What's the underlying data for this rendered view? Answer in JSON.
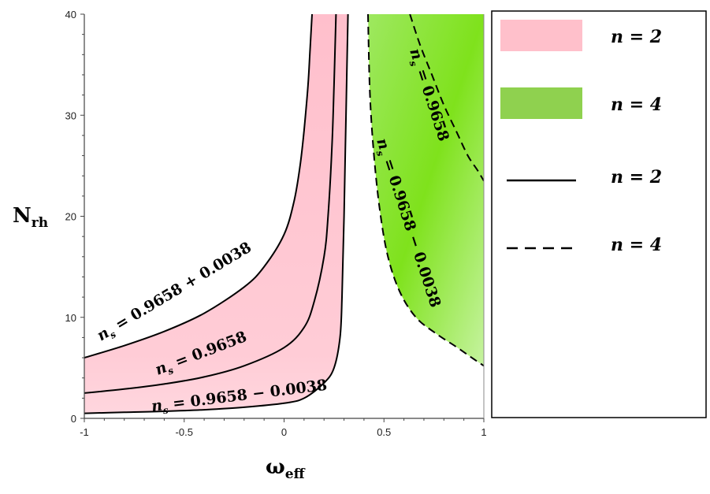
{
  "chart_data": {
    "type": "area",
    "title": "",
    "xlabel": "ω_eff",
    "ylabel": "N_rh",
    "xlim": [
      -1,
      1
    ],
    "ylim": [
      0,
      40
    ],
    "x_ticks": [
      "-1",
      "-0.5",
      "0",
      "0.5",
      "1"
    ],
    "y_ticks": [
      "0",
      "10",
      "20",
      "30",
      "40"
    ],
    "grid": false,
    "legend_position": "right",
    "legend": [
      {
        "label": "n = 2",
        "kind": "fill",
        "color": "#ffc0cb"
      },
      {
        "label": "n = 4",
        "kind": "fill",
        "color": "#8fd14f"
      },
      {
        "label": "n = 2",
        "kind": "solid-line",
        "color": "#000000"
      },
      {
        "label": "n = 4",
        "kind": "dashed-line",
        "color": "#000000"
      }
    ],
    "regions": [
      {
        "name": "n = 2",
        "color": "#ffc0cb",
        "between": [
          "n2_upper",
          "n2_lower"
        ]
      },
      {
        "name": "n = 4",
        "color": "#7fe01a",
        "between": [
          "n4_lower",
          "top-right"
        ]
      }
    ],
    "series": [
      {
        "id": "n2_upper",
        "label": "n_s = 0.9658 + 0.0038",
        "n": 2,
        "style": "solid",
        "points": [
          [
            -1.0,
            6.0
          ],
          [
            -0.8,
            7.2
          ],
          [
            -0.6,
            8.6
          ],
          [
            -0.4,
            10.4
          ],
          [
            -0.2,
            13.0
          ],
          [
            -0.1,
            15.0
          ],
          [
            0.0,
            18.2
          ],
          [
            0.05,
            21.5
          ],
          [
            0.08,
            25.0
          ],
          [
            0.1,
            28.5
          ],
          [
            0.12,
            33.0
          ],
          [
            0.13,
            36.5
          ],
          [
            0.14,
            40.0
          ]
        ]
      },
      {
        "id": "n2_central",
        "label": "n_s = 0.9658",
        "n": 2,
        "style": "solid",
        "points": [
          [
            -1.0,
            2.5
          ],
          [
            -0.8,
            2.9
          ],
          [
            -0.6,
            3.4
          ],
          [
            -0.4,
            4.1
          ],
          [
            -0.2,
            5.2
          ],
          [
            0.0,
            7.0
          ],
          [
            0.1,
            9.0
          ],
          [
            0.15,
            11.5
          ],
          [
            0.2,
            16.0
          ],
          [
            0.22,
            20.0
          ],
          [
            0.24,
            27.0
          ],
          [
            0.25,
            33.0
          ],
          [
            0.26,
            40.0
          ]
        ]
      },
      {
        "id": "n2_lower",
        "label": "n_s = 0.9658 − 0.0038",
        "n": 2,
        "style": "solid",
        "points": [
          [
            -1.0,
            0.5
          ],
          [
            -0.8,
            0.6
          ],
          [
            -0.6,
            0.7
          ],
          [
            -0.4,
            0.85
          ],
          [
            -0.2,
            1.1
          ],
          [
            0.0,
            1.5
          ],
          [
            0.1,
            2.0
          ],
          [
            0.2,
            3.5
          ],
          [
            0.25,
            5.0
          ],
          [
            0.28,
            8.0
          ],
          [
            0.29,
            12.0
          ],
          [
            0.3,
            20.0
          ],
          [
            0.31,
            30.0
          ],
          [
            0.32,
            40.0
          ]
        ]
      },
      {
        "id": "n4_lower",
        "label": "n_s = 0.9658 − 0.0038",
        "n": 4,
        "style": "dashed",
        "points": [
          [
            0.42,
            40.0
          ],
          [
            0.43,
            32.0
          ],
          [
            0.45,
            26.0
          ],
          [
            0.48,
            20.5
          ],
          [
            0.52,
            16.0
          ],
          [
            0.58,
            12.5
          ],
          [
            0.66,
            10.0
          ],
          [
            0.76,
            8.4
          ],
          [
            0.86,
            7.1
          ],
          [
            0.94,
            6.0
          ],
          [
            1.0,
            5.2
          ]
        ]
      },
      {
        "id": "n4_central",
        "label": "n_s = 0.9658",
        "n": 4,
        "style": "dashed",
        "points": [
          [
            0.63,
            40.0
          ],
          [
            0.68,
            37.0
          ],
          [
            0.74,
            34.0
          ],
          [
            0.8,
            31.0
          ],
          [
            0.86,
            28.5
          ],
          [
            0.92,
            26.0
          ],
          [
            0.97,
            24.5
          ],
          [
            1.0,
            23.5
          ]
        ]
      }
    ],
    "curve_labels": [
      {
        "text": "n_s = 0.9658 + 0.0038",
        "for": "n2_upper"
      },
      {
        "text": "n_s = 0.9658",
        "for": "n2_central"
      },
      {
        "text": "n_s = 0.9658 − 0.0038",
        "for": "n2_lower"
      },
      {
        "text": "n_s = 0.9658",
        "for": "n4_central"
      },
      {
        "text": "n_s = 0.9658 − 0.0038",
        "for": "n4_lower"
      }
    ]
  }
}
